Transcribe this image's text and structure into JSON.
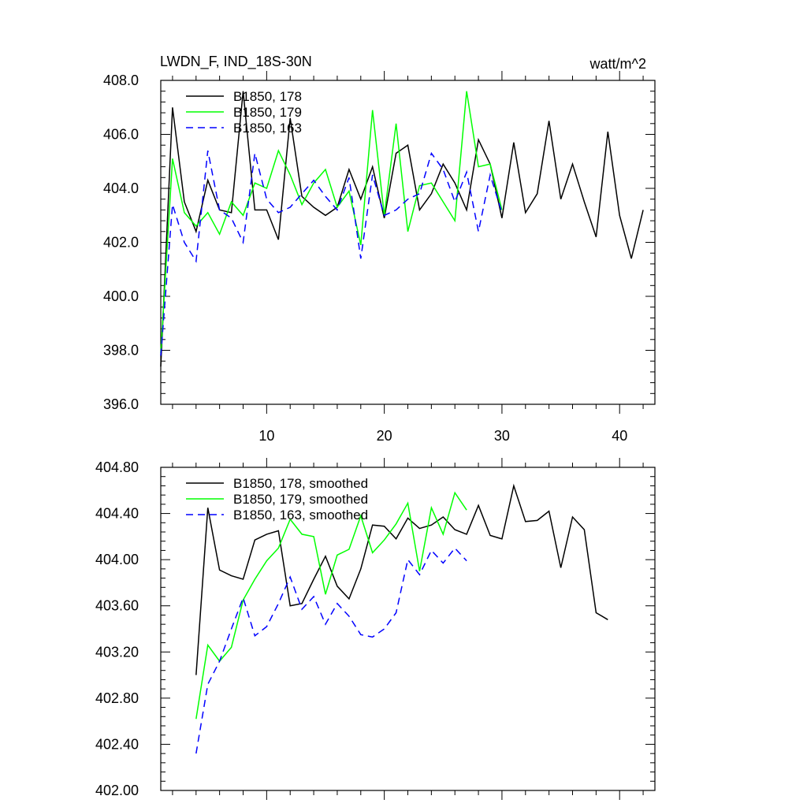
{
  "header": {
    "title": "LWDN_F, IND_18S-30N",
    "units": "watt/m^2"
  },
  "chart_data": [
    {
      "type": "line",
      "xlim": [
        1,
        43
      ],
      "ylim": [
        396,
        408
      ],
      "y_ticks": [
        "408.0",
        "406.0",
        "404.0",
        "402.0",
        "400.0",
        "398.0",
        "396.0"
      ],
      "y_tick_values": [
        408,
        406,
        404,
        402,
        400,
        398,
        396
      ],
      "x_ticks": [
        "10",
        "20",
        "30",
        "40"
      ],
      "x_tick_values": [
        10,
        20,
        30,
        40
      ],
      "grid": false,
      "legend_placement": "top-left",
      "series": [
        {
          "name": "B1850, 178",
          "color": "#000000",
          "dash": "solid",
          "x": [
            1,
            2,
            3,
            4,
            5,
            6,
            7,
            8,
            9,
            10,
            11,
            12,
            13,
            14,
            15,
            16,
            17,
            18,
            19,
            20,
            21,
            22,
            23,
            24,
            25,
            26,
            27,
            28,
            29,
            30,
            31,
            32,
            33,
            34,
            35,
            36,
            37,
            38,
            39,
            40,
            41,
            42
          ],
          "values": [
            397.4,
            407.0,
            403.5,
            402.4,
            404.3,
            403.2,
            403.1,
            407.6,
            403.2,
            403.2,
            402.1,
            406.6,
            403.7,
            403.3,
            403.0,
            403.3,
            404.7,
            403.6,
            404.8,
            402.9,
            405.3,
            405.6,
            403.2,
            403.8,
            404.9,
            404.2,
            403.2,
            405.8,
            404.9,
            402.9,
            405.7,
            403.1,
            403.8,
            406.5,
            403.6,
            404.9,
            403.5,
            402.2,
            406.1,
            403.0,
            401.4,
            403.2
          ]
        },
        {
          "name": "B1850, 179",
          "color": "#00ff00",
          "dash": "solid",
          "x": [
            1,
            2,
            3,
            4,
            5,
            6,
            7,
            8,
            9,
            10,
            11,
            12,
            13,
            14,
            15,
            16,
            17,
            18,
            19,
            20,
            21,
            22,
            23,
            24,
            25,
            26,
            27,
            28,
            29,
            30
          ],
          "values": [
            397.9,
            405.1,
            403.1,
            402.6,
            403.1,
            402.3,
            403.5,
            403.0,
            404.2,
            404.0,
            405.4,
            404.5,
            403.4,
            404.2,
            404.7,
            403.3,
            403.9,
            401.9,
            406.9,
            403.0,
            406.4,
            402.4,
            404.1,
            404.2,
            403.5,
            402.8,
            407.6,
            404.8,
            404.9,
            403.2
          ]
        },
        {
          "name": "B1850, 163",
          "color": "#0000ff",
          "dash": "dashed",
          "x": [
            1,
            2,
            3,
            4,
            5,
            6,
            7,
            8,
            9,
            10,
            11,
            12,
            13,
            14,
            15,
            16,
            17,
            18,
            19,
            20,
            21,
            22,
            23,
            24,
            25,
            26,
            27,
            28,
            29,
            30
          ],
          "values": [
            397.8,
            403.4,
            402.0,
            401.3,
            405.4,
            403.2,
            402.9,
            402.0,
            405.3,
            403.6,
            403.1,
            403.3,
            403.8,
            404.3,
            403.7,
            403.2,
            404.4,
            401.4,
            404.5,
            403.0,
            403.2,
            403.6,
            403.8,
            405.3,
            404.7,
            403.5,
            404.6,
            402.4,
            404.5,
            403.1
          ]
        }
      ]
    },
    {
      "type": "line",
      "xlim": [
        1,
        43
      ],
      "ylim": [
        402,
        404.8
      ],
      "y_ticks": [
        "404.80",
        "404.40",
        "404.00",
        "403.60",
        "403.20",
        "402.80",
        "402.40",
        "402.00"
      ],
      "y_tick_values": [
        404.8,
        404.4,
        404.0,
        403.6,
        403.2,
        402.8,
        402.4,
        402.0
      ],
      "x_ticks": [],
      "x_tick_values": [
        10,
        20,
        30,
        40
      ],
      "grid": false,
      "legend_placement": "top-left",
      "series": [
        {
          "name": "B1850, 178, smoothed",
          "color": "#000000",
          "dash": "solid",
          "x": [
            4,
            5,
            6,
            7,
            8,
            9,
            10,
            11,
            12,
            13,
            14,
            15,
            16,
            17,
            18,
            19,
            20,
            21,
            22,
            23,
            24,
            25,
            26,
            27,
            28,
            29,
            30,
            31,
            32,
            33,
            34,
            35,
            36,
            37,
            38,
            39
          ],
          "values": [
            403.0,
            404.45,
            403.91,
            403.86,
            403.83,
            404.17,
            404.22,
            404.25,
            403.6,
            403.62,
            403.83,
            404.03,
            403.77,
            403.66,
            403.92,
            404.3,
            404.29,
            404.18,
            404.36,
            404.27,
            404.3,
            404.37,
            404.26,
            404.22,
            404.47,
            404.21,
            404.18,
            404.64,
            404.33,
            404.34,
            404.42,
            403.93,
            404.37,
            404.26,
            403.54,
            403.48
          ]
        },
        {
          "name": "B1850, 179, smoothed",
          "color": "#00ff00",
          "dash": "solid",
          "x": [
            4,
            5,
            6,
            7,
            8,
            9,
            10,
            11,
            12,
            13,
            14,
            15,
            16,
            17,
            18,
            19,
            20,
            21,
            22,
            23,
            24,
            25,
            26,
            27
          ],
          "values": [
            402.62,
            403.26,
            403.12,
            403.24,
            403.65,
            403.83,
            403.99,
            404.1,
            404.35,
            404.22,
            404.2,
            403.7,
            404.04,
            404.09,
            404.38,
            404.06,
            404.17,
            404.31,
            404.49,
            403.9,
            404.45,
            404.22,
            404.58,
            404.43
          ]
        },
        {
          "name": "B1850, 163, smoothed",
          "color": "#0000ff",
          "dash": "dashed",
          "x": [
            4,
            5,
            6,
            7,
            8,
            9,
            10,
            11,
            12,
            13,
            14,
            15,
            16,
            17,
            18,
            19,
            20,
            21,
            22,
            23,
            24,
            25,
            26,
            27
          ],
          "values": [
            402.32,
            402.92,
            403.12,
            403.4,
            403.67,
            403.34,
            403.42,
            403.62,
            403.85,
            403.57,
            403.68,
            403.44,
            403.62,
            403.51,
            403.35,
            403.33,
            403.4,
            403.54,
            404.0,
            403.87,
            404.08,
            403.97,
            404.1,
            403.99
          ]
        }
      ]
    }
  ]
}
